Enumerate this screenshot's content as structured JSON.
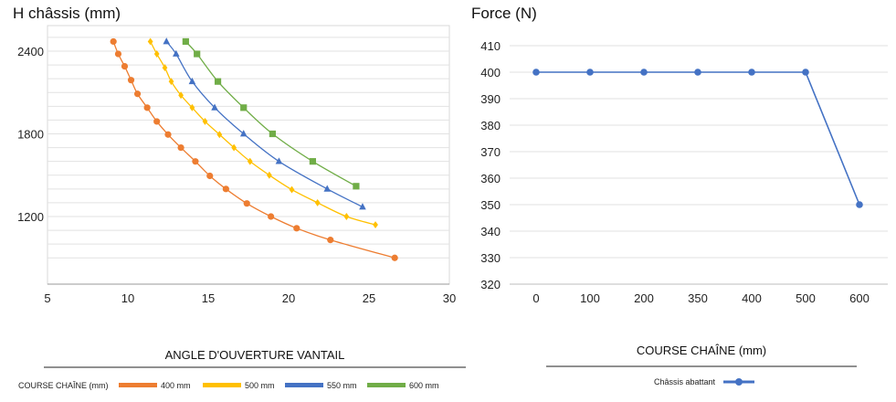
{
  "chart_data": [
    {
      "type": "line",
      "title": "H châssis (mm)",
      "xlabel": "ANGLE D'OUVERTURE VANTAIL",
      "xlim": [
        5,
        30
      ],
      "xticks": [
        "5",
        "10",
        "15",
        "20",
        "25",
        "30"
      ],
      "yticks": [
        "1200",
        "1800",
        "2400"
      ],
      "legend_title": "COURSE CHAÎNE (mm)",
      "legend_position": "bottom",
      "grid": true,
      "series": [
        {
          "name": "400 mm",
          "color": "#ED7D31",
          "marker": "circle",
          "points": [
            [
              9.1,
              2470
            ],
            [
              9.4,
              2380
            ],
            [
              9.8,
              2290
            ],
            [
              10.2,
              2190
            ],
            [
              10.6,
              2090
            ],
            [
              11.2,
              1990
            ],
            [
              11.8,
              1890
            ],
            [
              12.5,
              1795
            ],
            [
              13.3,
              1700
            ],
            [
              14.2,
              1600
            ],
            [
              15.1,
              1495
            ],
            [
              16.1,
              1400
            ],
            [
              17.4,
              1295
            ],
            [
              18.9,
              1200
            ],
            [
              20.5,
              1115
            ],
            [
              22.6,
              1030
            ],
            [
              26.6,
              900
            ]
          ]
        },
        {
          "name": "500 mm",
          "color": "#FFC000",
          "marker": "diamond",
          "points": [
            [
              11.4,
              2470
            ],
            [
              11.8,
              2380
            ],
            [
              12.3,
              2280
            ],
            [
              12.7,
              2180
            ],
            [
              13.3,
              2080
            ],
            [
              14.0,
              1990
            ],
            [
              14.8,
              1890
            ],
            [
              15.7,
              1795
            ],
            [
              16.6,
              1700
            ],
            [
              17.6,
              1600
            ],
            [
              18.8,
              1500
            ],
            [
              20.2,
              1395
            ],
            [
              21.8,
              1300
            ],
            [
              23.6,
              1200
            ],
            [
              25.4,
              1140
            ]
          ]
        },
        {
          "name": "550 mm",
          "color": "#4472C4",
          "marker": "triangle",
          "points": [
            [
              12.4,
              2470
            ],
            [
              13.0,
              2380
            ],
            [
              14.0,
              2180
            ],
            [
              15.4,
              1990
            ],
            [
              17.2,
              1800
            ],
            [
              19.4,
              1600
            ],
            [
              22.4,
              1400
            ],
            [
              24.6,
              1270
            ]
          ]
        },
        {
          "name": "600 mm",
          "color": "#70AD47",
          "marker": "square",
          "points": [
            [
              13.6,
              2470
            ],
            [
              14.3,
              2380
            ],
            [
              15.6,
              2180
            ],
            [
              17.2,
              1990
            ],
            [
              19.0,
              1800
            ],
            [
              21.5,
              1600
            ],
            [
              24.2,
              1420
            ]
          ]
        }
      ]
    },
    {
      "type": "line",
      "title": "Force (N)",
      "xlabel": "COURSE CHAÎNE (mm)",
      "categories": [
        "0",
        "100",
        "200",
        "350",
        "400",
        "500",
        "600"
      ],
      "ylim": [
        320,
        410
      ],
      "yticks": [
        "320",
        "330",
        "340",
        "350",
        "360",
        "370",
        "380",
        "390",
        "400",
        "410"
      ],
      "legend_position": "bottom",
      "grid": true,
      "series": [
        {
          "name": "Châssis abattant",
          "color": "#4472C4",
          "marker": "circle",
          "values": [
            400,
            400,
            400,
            400,
            400,
            400,
            350
          ]
        }
      ]
    }
  ]
}
